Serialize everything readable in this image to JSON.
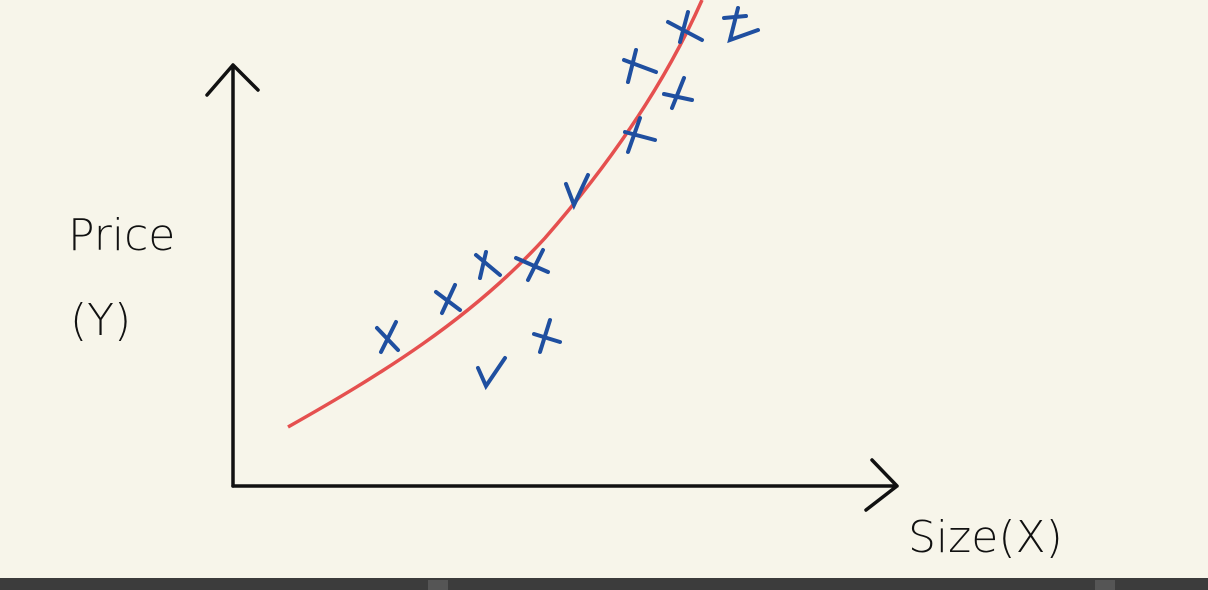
{
  "diagram": {
    "y_label": [
      "Price",
      "(Y)"
    ],
    "x_label": "Size(X)"
  }
}
